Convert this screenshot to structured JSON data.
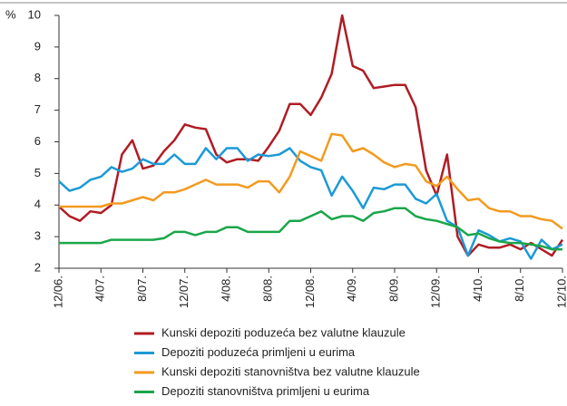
{
  "chart_data": {
    "type": "line",
    "y_axis_label": "%",
    "categories": [
      "12/06.",
      null,
      null,
      null,
      "4/07.",
      null,
      null,
      null,
      "8/07.",
      null,
      null,
      null,
      "12/07.",
      null,
      null,
      null,
      "4/08.",
      null,
      null,
      null,
      "8/08.",
      null,
      null,
      null,
      "12/08.",
      null,
      null,
      null,
      "4/09.",
      null,
      null,
      null,
      "8/09.",
      null,
      null,
      null,
      "12/09.",
      null,
      null,
      null,
      "4/10.",
      null,
      null,
      null,
      "8/10.",
      null,
      null,
      null,
      "12/10."
    ],
    "series": [
      {
        "name": "Kunski depoziti poduzeća bez valutne klauzule",
        "color": "#b01c24",
        "values": [
          3.95,
          3.65,
          3.5,
          3.8,
          3.75,
          4.0,
          5.6,
          6.05,
          5.15,
          5.25,
          5.7,
          6.05,
          6.55,
          6.45,
          6.4,
          5.6,
          5.35,
          5.45,
          5.45,
          5.4,
          5.85,
          6.35,
          7.2,
          7.2,
          6.85,
          7.4,
          8.15,
          10.0,
          8.4,
          8.25,
          7.7,
          7.75,
          7.8,
          7.8,
          7.1,
          5.1,
          4.3,
          5.6,
          3.0,
          2.4,
          2.75,
          2.65,
          2.65,
          2.75,
          2.6,
          2.8,
          2.6,
          2.4,
          2.9
        ]
      },
      {
        "name": "Depoziti poduzeća primljeni u eurima",
        "color": "#1b9ad6",
        "values": [
          4.75,
          4.45,
          4.55,
          4.8,
          4.9,
          5.2,
          5.05,
          5.15,
          5.45,
          5.3,
          5.3,
          5.6,
          5.3,
          5.3,
          5.8,
          5.45,
          5.8,
          5.8,
          5.4,
          5.6,
          5.55,
          5.6,
          5.8,
          5.4,
          5.2,
          5.1,
          4.3,
          4.9,
          4.45,
          3.9,
          4.55,
          4.5,
          4.65,
          4.65,
          4.2,
          4.05,
          4.35,
          3.5,
          3.3,
          2.4,
          3.2,
          3.05,
          2.85,
          2.95,
          2.85,
          2.3,
          2.9,
          2.6,
          2.75
        ]
      },
      {
        "name": "Kunski depoziti stanovništva bez valutne klauzule",
        "color": "#f39a1f",
        "values": [
          3.95,
          3.95,
          3.95,
          3.95,
          3.95,
          4.05,
          4.05,
          4.15,
          4.25,
          4.15,
          4.4,
          4.4,
          4.5,
          4.65,
          4.8,
          4.65,
          4.65,
          4.65,
          4.55,
          4.75,
          4.75,
          4.4,
          4.9,
          5.7,
          5.55,
          5.4,
          6.25,
          6.2,
          5.7,
          5.8,
          5.6,
          5.35,
          5.2,
          5.3,
          5.25,
          4.75,
          4.6,
          4.9,
          4.5,
          4.15,
          4.2,
          3.9,
          3.8,
          3.8,
          3.65,
          3.65,
          3.55,
          3.5,
          3.25
        ]
      },
      {
        "name": "Depoziti stanovništva primljeni u eurima",
        "color": "#1aa64a",
        "values": [
          2.8,
          2.8,
          2.8,
          2.8,
          2.8,
          2.9,
          2.9,
          2.9,
          2.9,
          2.9,
          2.95,
          3.15,
          3.15,
          3.05,
          3.15,
          3.15,
          3.3,
          3.3,
          3.15,
          3.15,
          3.15,
          3.15,
          3.5,
          3.5,
          3.65,
          3.8,
          3.55,
          3.65,
          3.65,
          3.5,
          3.75,
          3.8,
          3.9,
          3.9,
          3.65,
          3.55,
          3.5,
          3.4,
          3.3,
          3.05,
          3.1,
          2.95,
          2.85,
          2.8,
          2.8,
          2.75,
          2.7,
          2.6,
          2.6
        ]
      }
    ],
    "ylim": [
      2,
      10
    ],
    "yticks": [
      2,
      3,
      4,
      5,
      6,
      7,
      8,
      9,
      10
    ],
    "grid": false
  }
}
